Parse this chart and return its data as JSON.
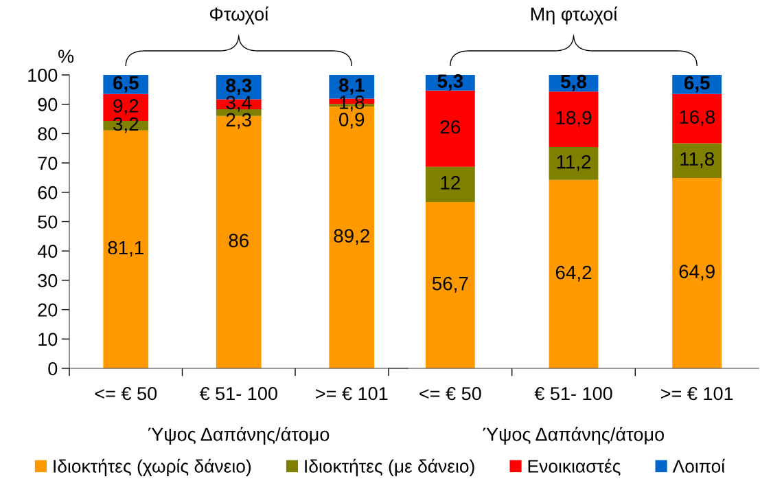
{
  "chart_data": [
    {
      "type": "bar",
      "title": "Φτωχοί",
      "xlabel": "Ύψος Δαπάνης/άτομο",
      "ylabel": "%",
      "categories": [
        "<= € 50",
        "€ 51- 100",
        ">= € 101"
      ],
      "stacked": true,
      "ylim": [
        0,
        100
      ],
      "yticks": [
        0,
        10,
        20,
        30,
        40,
        50,
        60,
        70,
        80,
        90,
        100
      ],
      "legend": "bottom",
      "series": [
        {
          "name": "Ιδιοκτήτες (χωρίς δάνειο)",
          "color": "#ff9900",
          "values": [
            81.1,
            86,
            89.2
          ],
          "value_labels": [
            "81,1",
            "86",
            "89,2"
          ]
        },
        {
          "name": "Ιδιοκτήτες (με δάνειο)",
          "color": "#808000",
          "values": [
            3.2,
            2.3,
            0.9
          ],
          "value_labels": [
            "3,2",
            "2,3",
            "0,9"
          ]
        },
        {
          "name": "Ενοικιαστές",
          "color": "#ff0000",
          "values": [
            9.2,
            3.4,
            1.8
          ],
          "value_labels": [
            "9,2",
            "3,4",
            "1,8"
          ]
        },
        {
          "name": "Λοιποί",
          "color": "#0066cc",
          "values": [
            6.5,
            8.3,
            8.1
          ],
          "value_labels": [
            "6,5",
            "8,3",
            "8,1"
          ]
        }
      ]
    },
    {
      "type": "bar",
      "title": "Μη φτωχοί",
      "xlabel": "Ύψος Δαπάνης/άτομο",
      "categories": [
        "<= € 50",
        "€ 51- 100",
        ">= € 101"
      ],
      "stacked": true,
      "ylim": [
        0,
        100
      ],
      "tick_labels": "x",
      "series": [
        {
          "name": "Ιδιοκτήτες (χωρίς δάνειο)",
          "color": "#ff9900",
          "values": [
            56.7,
            64.2,
            64.9
          ],
          "value_labels": [
            "56,7",
            "64,2",
            "64,9"
          ]
        },
        {
          "name": "Ιδιοκτήτες (με δάνειο)",
          "color": "#808000",
          "values": [
            12,
            11.2,
            11.8
          ],
          "value_labels": [
            "12",
            "11,2",
            "11,8"
          ]
        },
        {
          "name": "Ενοικιαστές",
          "color": "#ff0000",
          "values": [
            26,
            18.9,
            16.8
          ],
          "value_labels": [
            "26",
            "18,9",
            "16,8"
          ]
        },
        {
          "name": "Λοιποί",
          "color": "#0066cc",
          "values": [
            5.3,
            5.8,
            6.5
          ],
          "value_labels": [
            "5,3",
            "5,8",
            "6,5"
          ]
        }
      ]
    }
  ]
}
